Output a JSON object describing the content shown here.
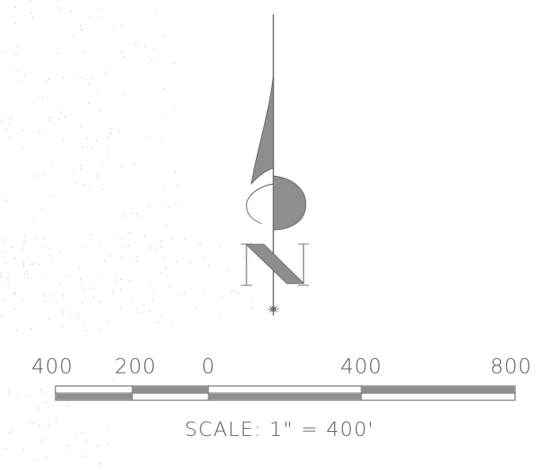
{
  "scale_bar": {
    "tick_labels": [
      "400",
      "200",
      "0",
      "400",
      "800"
    ],
    "scale_text": "SCALE:  1\"  =  400'"
  },
  "north_arrow": {
    "letter": "N",
    "icon": "north-arrow-icon"
  },
  "colors": {
    "ink": "#4a4a4a",
    "fill": "#8e8e8e",
    "speckle": "#b5b5b5"
  }
}
